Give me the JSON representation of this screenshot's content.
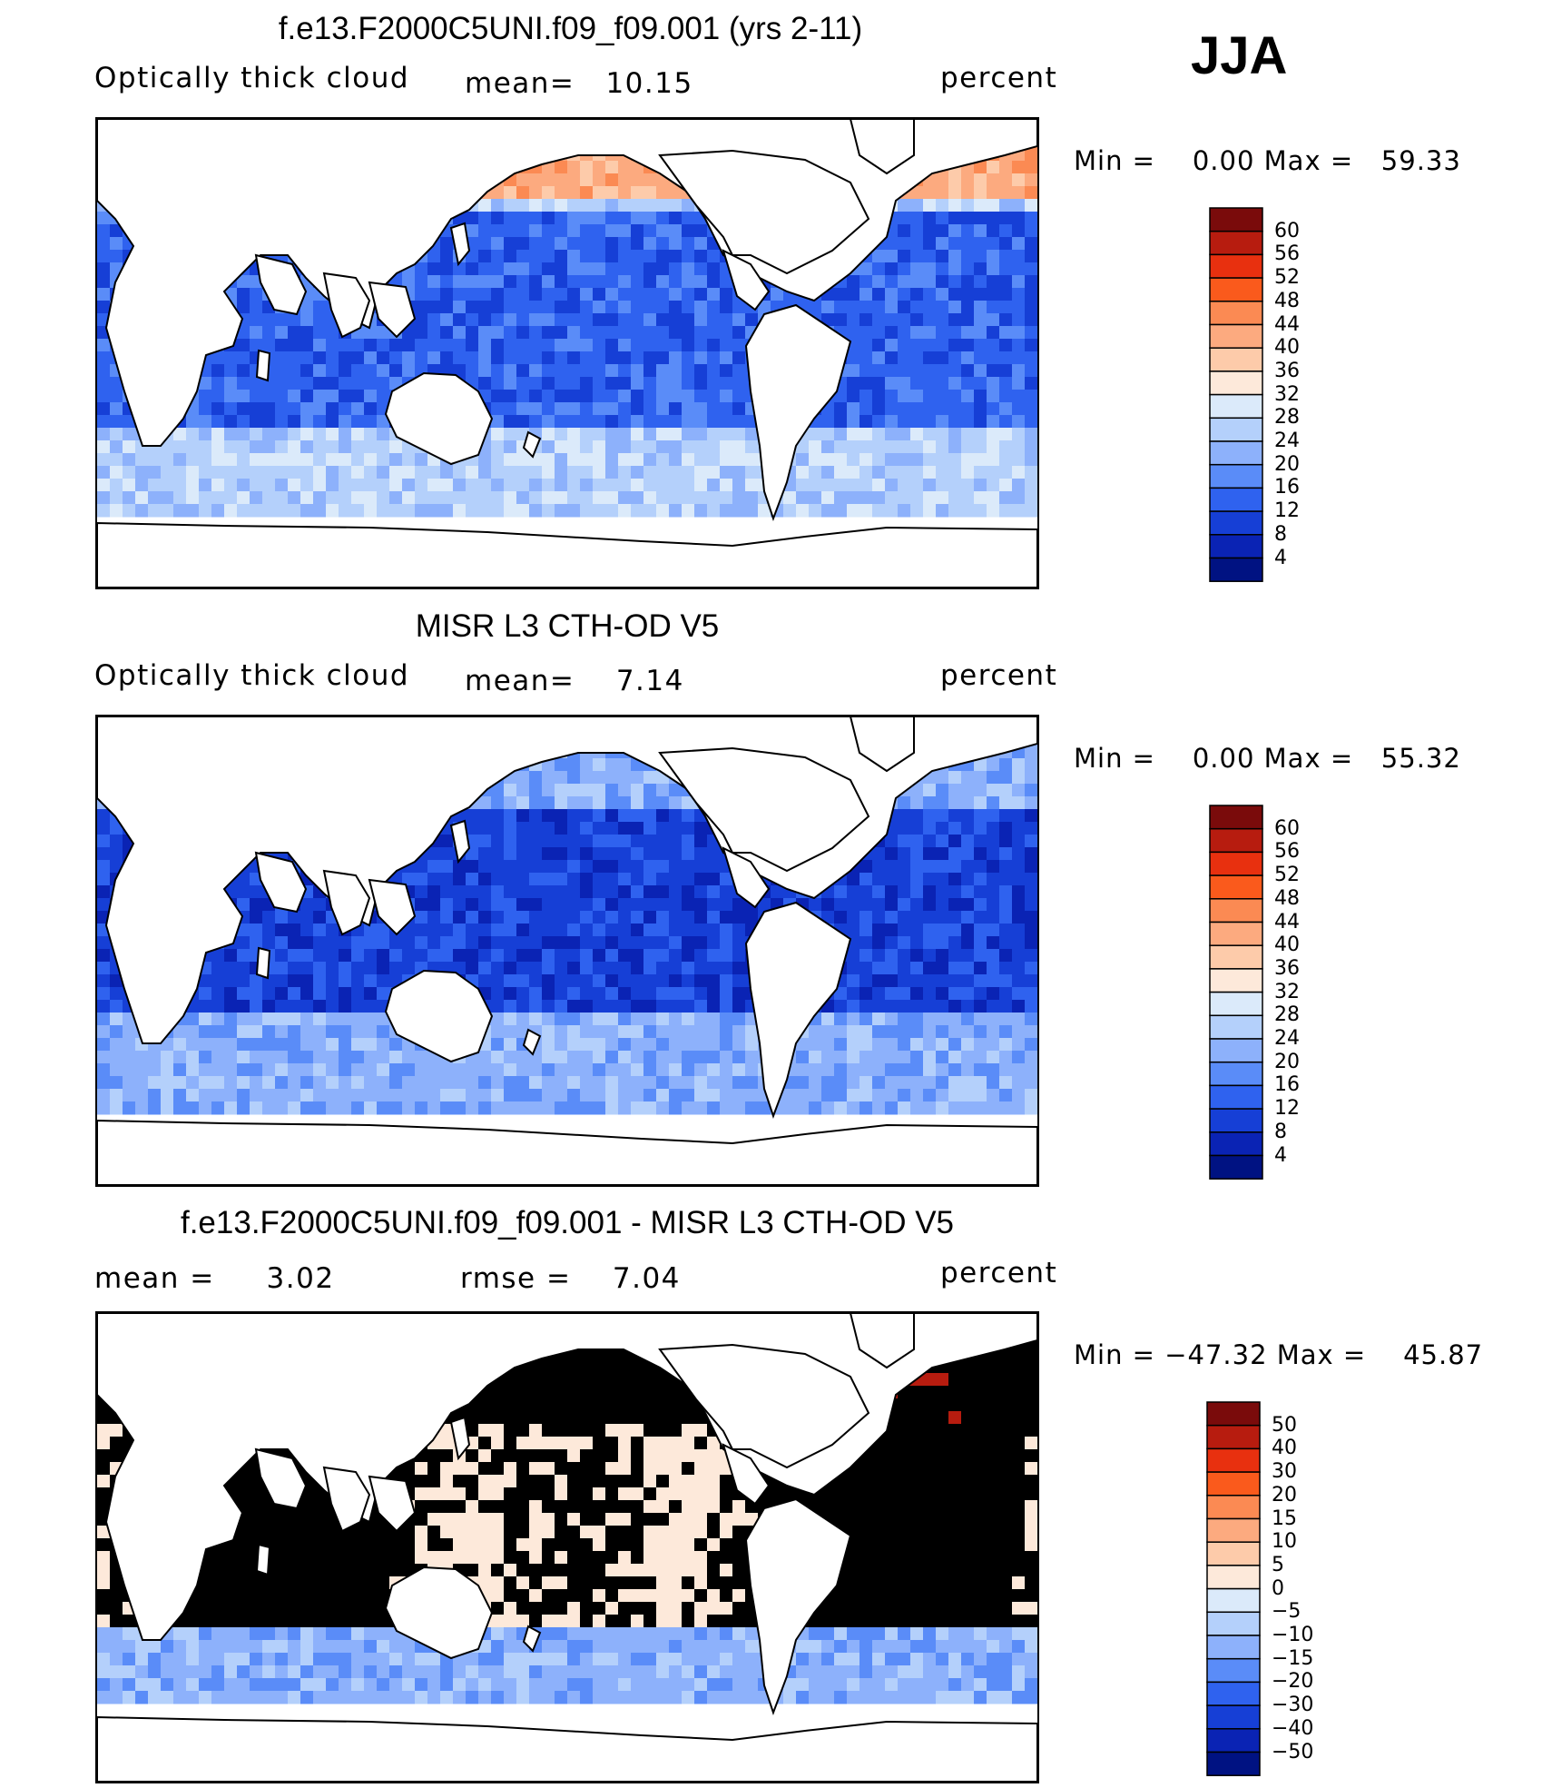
{
  "season": "JJA",
  "panels": [
    {
      "title": "f.e13.F2000C5UNI.f09_f09.001 (yrs 2-11)",
      "left_label": "Optically thick cloud",
      "center_label": "mean=",
      "center_value": "10.15",
      "units": "percent",
      "min_label": "Min  =",
      "min_value": "0.00",
      "max_label": "Max  =",
      "max_value": "59.33",
      "palette": "abs",
      "levels": [
        "60",
        "56",
        "52",
        "48",
        "44",
        "40",
        "36",
        "32",
        "28",
        "24",
        "20",
        "16",
        "12",
        "8",
        "4"
      ]
    },
    {
      "title": "MISR L3 CTH-OD V5",
      "left_label": "Optically thick cloud",
      "center_label": "mean=",
      "center_value": "7.14",
      "units": "percent",
      "min_label": "Min  =",
      "min_value": "0.00",
      "max_label": "Max  =",
      "max_value": "55.32",
      "palette": "abs",
      "levels": [
        "60",
        "56",
        "52",
        "48",
        "44",
        "40",
        "36",
        "32",
        "28",
        "24",
        "20",
        "16",
        "12",
        "8",
        "4"
      ]
    },
    {
      "title": "f.e13.F2000C5UNI.f09_f09.001 - MISR L3 CTH-OD V5",
      "left_label": "mean =",
      "left_value": "3.02",
      "center_label": "rmse =",
      "center_value": "7.04",
      "units": "percent",
      "min_label": "Min  =",
      "min_value": "−47.32",
      "max_label": "Max  =",
      "max_value": "45.87",
      "palette": "diff",
      "levels": [
        "50",
        "40",
        "30",
        "20",
        "15",
        "10",
        "5",
        "0",
        "−5",
        "−10",
        "−15",
        "−20",
        "−30",
        "−40",
        "−50"
      ]
    }
  ],
  "colors": {
    "abs": [
      "#7a0b0b",
      "#b71c0f",
      "#e8300f",
      "#fa5a1c",
      "#fb8a53",
      "#fcaa7f",
      "#fdcbaa",
      "#fde9da",
      "#dbeafa",
      "#b4d0fb",
      "#8db1fb",
      "#5a8cf8",
      "#2f62ef",
      "#163fd6",
      "#0a23b4",
      "#001282"
    ],
    "diff": [
      "#7a0b0b",
      "#b71c0f",
      "#e8300f",
      "#fa5a1c",
      "#fb8a53",
      "#fcaa7f",
      "#fdcbaa",
      "#fde9da",
      "#dbeafa",
      "#b4d0fb",
      "#8db1fb",
      "#5a8cf8",
      "#2f62ef",
      "#163fd6",
      "#0a23b4",
      "#001282"
    ],
    "land": "#ffffff",
    "coast": "#000000"
  }
}
